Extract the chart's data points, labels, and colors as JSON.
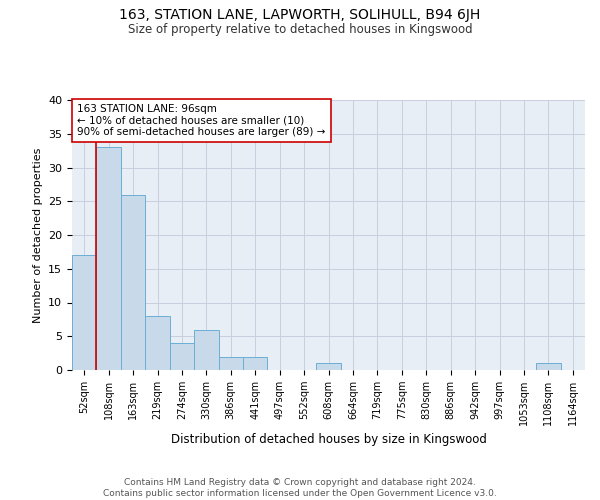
{
  "title": "163, STATION LANE, LAPWORTH, SOLIHULL, B94 6JH",
  "subtitle": "Size of property relative to detached houses in Kingswood",
  "xlabel": "Distribution of detached houses by size in Kingswood",
  "ylabel": "Number of detached properties",
  "categories": [
    "52sqm",
    "108sqm",
    "163sqm",
    "219sqm",
    "274sqm",
    "330sqm",
    "386sqm",
    "441sqm",
    "497sqm",
    "552sqm",
    "608sqm",
    "664sqm",
    "719sqm",
    "775sqm",
    "830sqm",
    "886sqm",
    "942sqm",
    "997sqm",
    "1053sqm",
    "1108sqm",
    "1164sqm"
  ],
  "values": [
    17,
    33,
    26,
    8,
    4,
    6,
    2,
    2,
    0,
    0,
    1,
    0,
    0,
    0,
    0,
    0,
    0,
    0,
    0,
    1,
    0
  ],
  "bar_color": "#c8d9ea",
  "bar_edge_color": "#6baed6",
  "subject_line_color": "#cc0000",
  "annotation_text": "163 STATION LANE: 96sqm\n← 10% of detached houses are smaller (10)\n90% of semi-detached houses are larger (89) →",
  "annotation_box_color": "#ffffff",
  "annotation_box_edge_color": "#cc0000",
  "grid_color": "#c8d0de",
  "background_color": "#e8eef5",
  "footer_text": "Contains HM Land Registry data © Crown copyright and database right 2024.\nContains public sector information licensed under the Open Government Licence v3.0.",
  "ylim": [
    0,
    40
  ],
  "yticks": [
    0,
    5,
    10,
    15,
    20,
    25,
    30,
    35,
    40
  ]
}
